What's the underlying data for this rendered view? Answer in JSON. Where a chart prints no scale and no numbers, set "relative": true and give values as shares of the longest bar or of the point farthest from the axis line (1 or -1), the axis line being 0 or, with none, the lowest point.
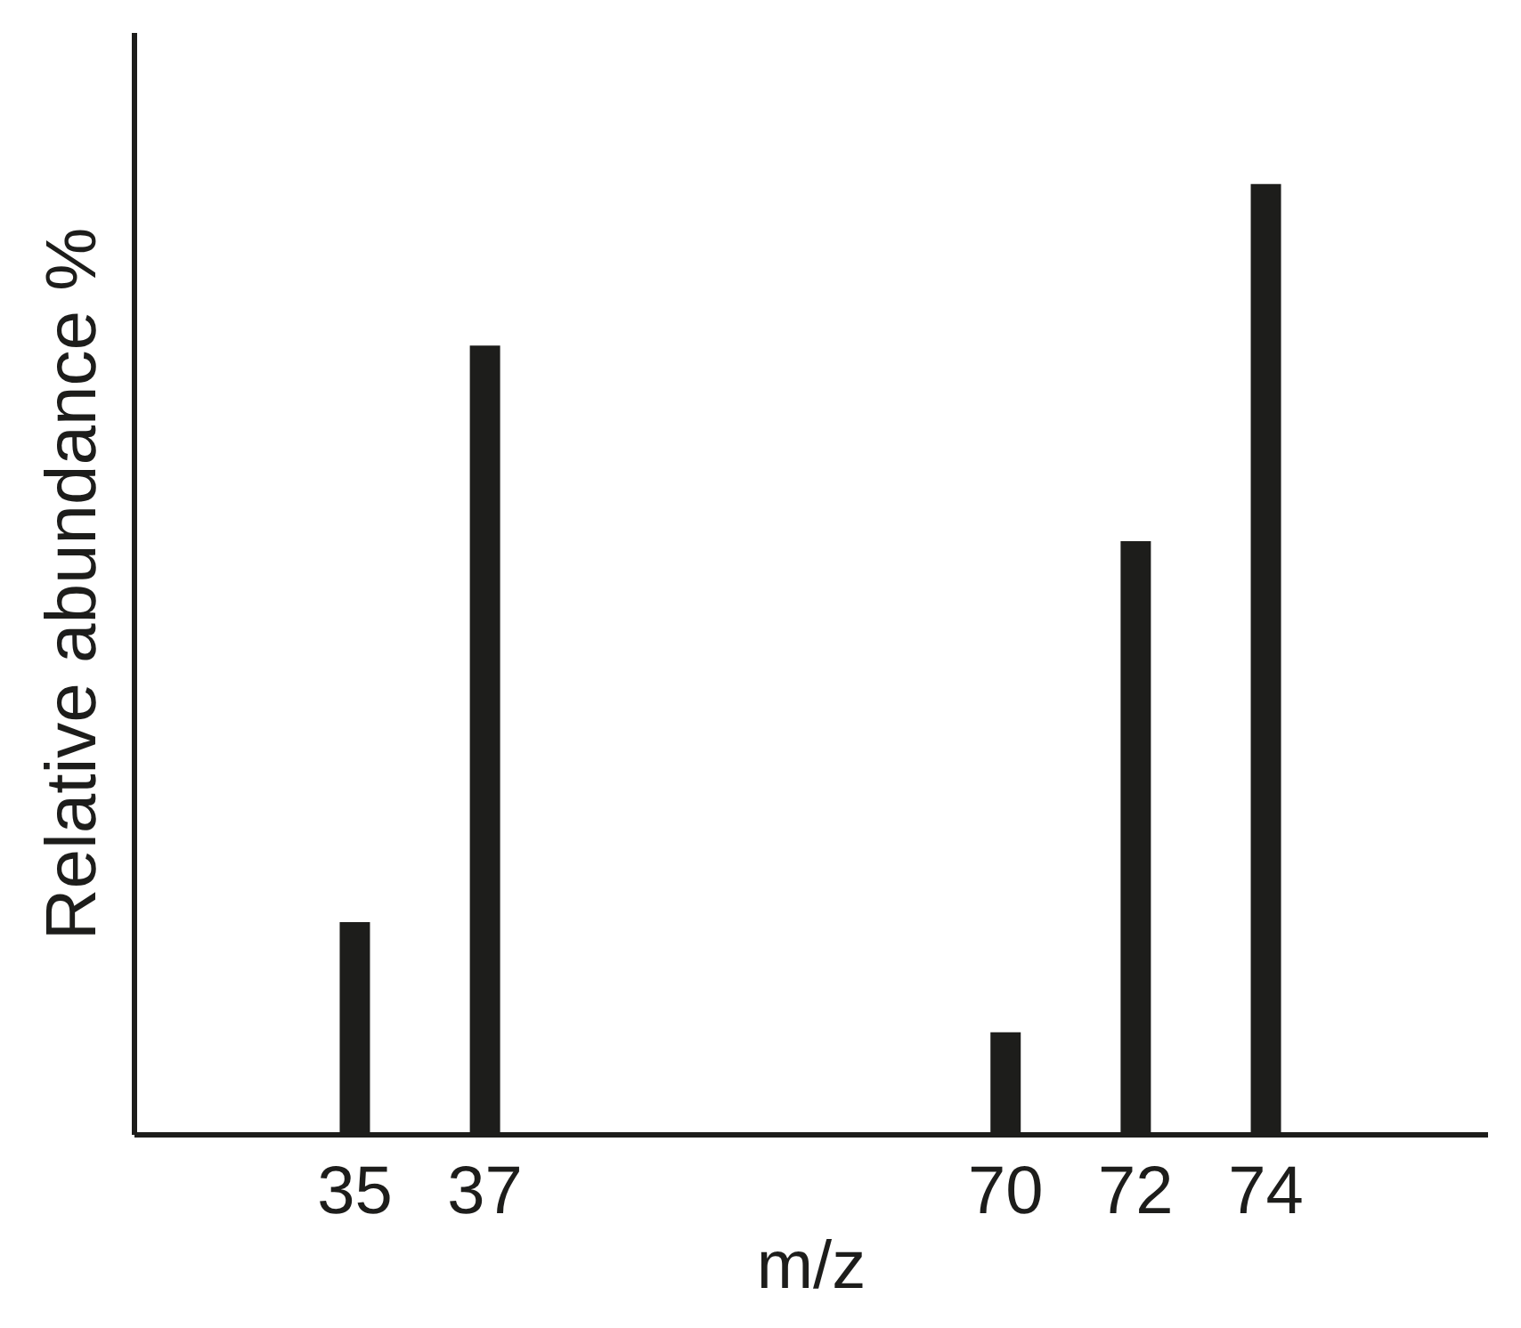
{
  "chart_data": {
    "type": "bar",
    "relative": true,
    "xlabel": "m/z",
    "ylabel": "Relative abundance %",
    "categories": [
      "35",
      "37",
      null,
      null,
      null,
      "70",
      "72",
      "74"
    ],
    "values": [
      0.223,
      0.83,
      null,
      null,
      null,
      0.107,
      0.624,
      1
    ],
    "color": "#1d1d1b",
    "grid": false
  }
}
